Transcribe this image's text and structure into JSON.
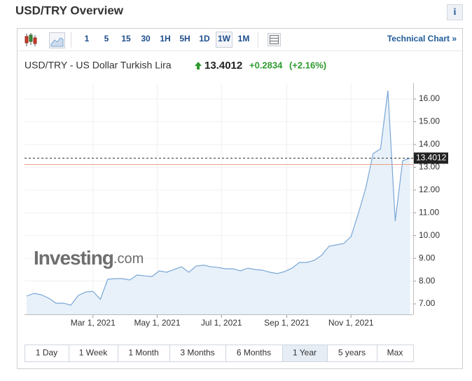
{
  "header": {
    "title": "USD/TRY Overview",
    "info": "i"
  },
  "toolbar": {
    "intervals": [
      "1",
      "5",
      "15",
      "30",
      "1H",
      "5H",
      "1D",
      "1W",
      "1M"
    ],
    "active_interval": 7,
    "link": "Technical Chart »"
  },
  "quote": {
    "name": "USD/TRY - US Dollar Turkish Lira",
    "change": "+0.2834",
    "change_pct": "(+2.16%)"
  },
  "watermark": {
    "brand": "Investing",
    "suffix": ".com"
  },
  "ranges": [
    "1 Day",
    "1 Week",
    "1 Month",
    "3 Months",
    "6 Months",
    "1 Year",
    "5 years",
    "Max"
  ],
  "active_range": 5,
  "chart_data": {
    "type": "area",
    "last": 13.4012,
    "prev_close": 13.1178,
    "color": "#7aa7d6",
    "fill": "#e4eef8",
    "x": [
      "2020-12-28",
      "2021-01-04",
      "2021-01-11",
      "2021-01-18",
      "2021-01-25",
      "2021-02-01",
      "2021-02-08",
      "2021-02-15",
      "2021-02-22",
      "2021-03-01",
      "2021-03-08",
      "2021-03-15",
      "2021-03-22",
      "2021-03-29",
      "2021-04-05",
      "2021-04-12",
      "2021-04-19",
      "2021-04-26",
      "2021-05-03",
      "2021-05-10",
      "2021-05-17",
      "2021-05-24",
      "2021-05-31",
      "2021-06-07",
      "2021-06-14",
      "2021-06-21",
      "2021-06-28",
      "2021-07-05",
      "2021-07-12",
      "2021-07-19",
      "2021-07-26",
      "2021-08-02",
      "2021-08-09",
      "2021-08-16",
      "2021-08-23",
      "2021-08-30",
      "2021-09-06",
      "2021-09-13",
      "2021-09-20",
      "2021-09-27",
      "2021-10-04",
      "2021-10-11",
      "2021-10-18",
      "2021-10-25",
      "2021-11-01",
      "2021-11-08",
      "2021-11-15",
      "2021-11-22",
      "2021-11-29",
      "2021-12-06",
      "2021-12-13",
      "2021-12-20",
      "2021-12-27"
    ],
    "values": [
      7.34,
      7.46,
      7.4,
      7.25,
      7.03,
      7.03,
      6.94,
      7.37,
      7.52,
      7.55,
      7.2,
      8.08,
      8.11,
      8.11,
      8.05,
      8.27,
      8.23,
      8.2,
      8.45,
      8.39,
      8.51,
      8.63,
      8.39,
      8.66,
      8.7,
      8.63,
      8.6,
      8.54,
      8.54,
      8.45,
      8.57,
      8.51,
      8.48,
      8.39,
      8.33,
      8.42,
      8.57,
      8.82,
      8.82,
      8.91,
      9.13,
      9.53,
      9.59,
      9.65,
      9.96,
      10.98,
      12.09,
      13.6,
      13.81,
      16.37,
      10.64,
      13.29,
      13.4012
    ],
    "xlim": [
      "2020-12-26",
      "2021-12-30"
    ],
    "xticks": [
      {
        "value": "2021-03-01",
        "label": "Mar 1, 2021"
      },
      {
        "value": "2021-05-01",
        "label": "May 1, 2021"
      },
      {
        "value": "2021-07-01",
        "label": "Jul 1, 2021"
      },
      {
        "value": "2021-09-01",
        "label": "Sep 1, 2021"
      },
      {
        "value": "2021-11-01",
        "label": "Nov 1, 2021"
      }
    ],
    "ylim": [
      6.54,
      16.71
    ],
    "yticks": [
      {
        "value": 7,
        "label": "7.00"
      },
      {
        "value": 8,
        "label": "8.00"
      },
      {
        "value": 9,
        "label": "9.00"
      },
      {
        "value": 10,
        "label": "10.00"
      },
      {
        "value": 11,
        "label": "11.00"
      },
      {
        "value": 12,
        "label": "12.00"
      },
      {
        "value": 13,
        "label": "13.00"
      },
      {
        "value": 14,
        "label": "14.00"
      },
      {
        "value": 15,
        "label": "15.00"
      },
      {
        "value": 16,
        "label": "16.00"
      }
    ],
    "grid": true
  }
}
